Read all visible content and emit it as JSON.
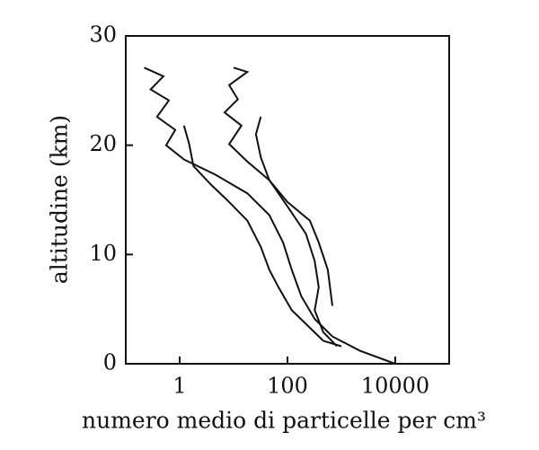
{
  "chart_data": {
    "type": "line",
    "x_label": "numero medio di particelle per cm³",
    "y_label": "altitudine (km)",
    "xscale": "log",
    "xlim": [
      0.1,
      100000
    ],
    "xticks": [
      1,
      100,
      10000
    ],
    "ylim": [
      0,
      30
    ],
    "yticks": [
      0,
      10,
      20,
      30
    ],
    "color": "#111111",
    "series": [
      {
        "x": [
          0.22,
          0.5,
          0.29,
          0.63,
          0.38,
          0.83,
          0.56,
          1.2,
          4.6,
          18,
          46,
          83,
          120,
          180,
          320,
          680,
          2200,
          10000
        ],
        "values": [
          27.1,
          26.3,
          25.1,
          24.1,
          22.6,
          21.4,
          20.0,
          18.7,
          17.3,
          15.6,
          13.6,
          11.1,
          8.6,
          6.2,
          4.1,
          2.5,
          1.2,
          0
        ]
      },
      {
        "x": [
          1.2,
          1.5,
          1.8,
          3.8,
          8.3,
          18,
          32,
          46,
          68,
          120,
          260,
          460,
          1000
        ],
        "values": [
          21.8,
          20.1,
          18.1,
          16.4,
          14.8,
          13.1,
          10.7,
          8.6,
          7.0,
          4.9,
          3.3,
          2.1,
          1.6
        ]
      },
      {
        "x": [
          10,
          18,
          8.3,
          12,
          6.8,
          14,
          8.3,
          18,
          46,
          100,
          220,
          320,
          380,
          320,
          460,
          830
        ],
        "values": [
          27.1,
          26.7,
          25.5,
          24.2,
          23.0,
          21.8,
          20.1,
          18.5,
          16.8,
          14.4,
          11.9,
          9.4,
          7.0,
          4.9,
          2.9,
          1.6
        ]
      },
      {
        "x": [
          32,
          26,
          32,
          46,
          100,
          260,
          380,
          560,
          680
        ],
        "values": [
          22.6,
          21.0,
          18.9,
          16.8,
          14.8,
          13.1,
          11.1,
          8.6,
          5.3
        ]
      }
    ]
  }
}
